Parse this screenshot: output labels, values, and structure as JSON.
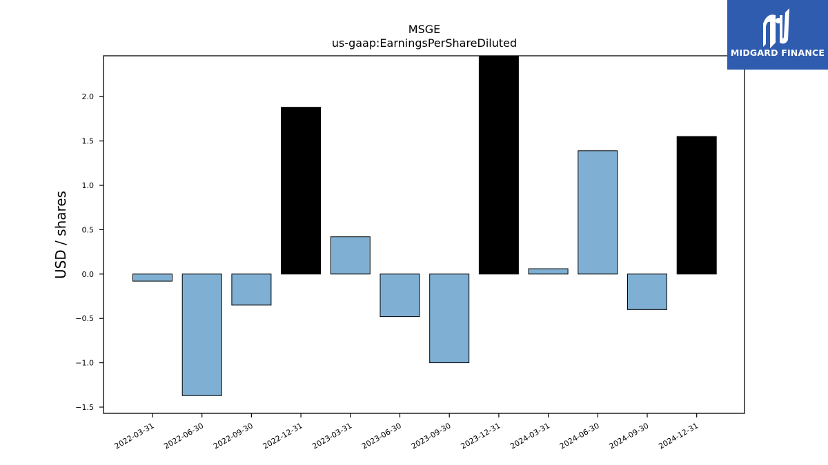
{
  "logo": {
    "text": "MIDGARD FINANCE",
    "background": "#2f5caf"
  },
  "chart_data": {
    "type": "bar",
    "title": "MSGE",
    "subtitle": "us-gaap:EarningsPerShareDiluted",
    "xlabel": "",
    "ylabel": "USD / shares",
    "ylim": [
      -1.57,
      2.46
    ],
    "yticks": [
      -1.5,
      -1.0,
      -0.5,
      0.0,
      0.5,
      1.0,
      1.5,
      2.0
    ],
    "categories": [
      "2022-03-31",
      "2022-06-30",
      "2022-09-30",
      "2022-12-31",
      "2023-03-31",
      "2023-06-30",
      "2023-09-30",
      "2023-12-31",
      "2024-03-31",
      "2024-06-30",
      "2024-09-30",
      "2024-12-31"
    ],
    "values": [
      -0.08,
      -1.37,
      -0.35,
      1.88,
      0.42,
      -0.48,
      -1.0,
      2.5,
      0.06,
      1.39,
      -0.4,
      1.55
    ],
    "colors": [
      "#7fb0d3",
      "#7fb0d3",
      "#7fb0d3",
      "#000000",
      "#7fb0d3",
      "#7fb0d3",
      "#7fb0d3",
      "#000000",
      "#7fb0d3",
      "#7fb0d3",
      "#7fb0d3",
      "#000000"
    ],
    "grid": false,
    "legend": "none"
  }
}
